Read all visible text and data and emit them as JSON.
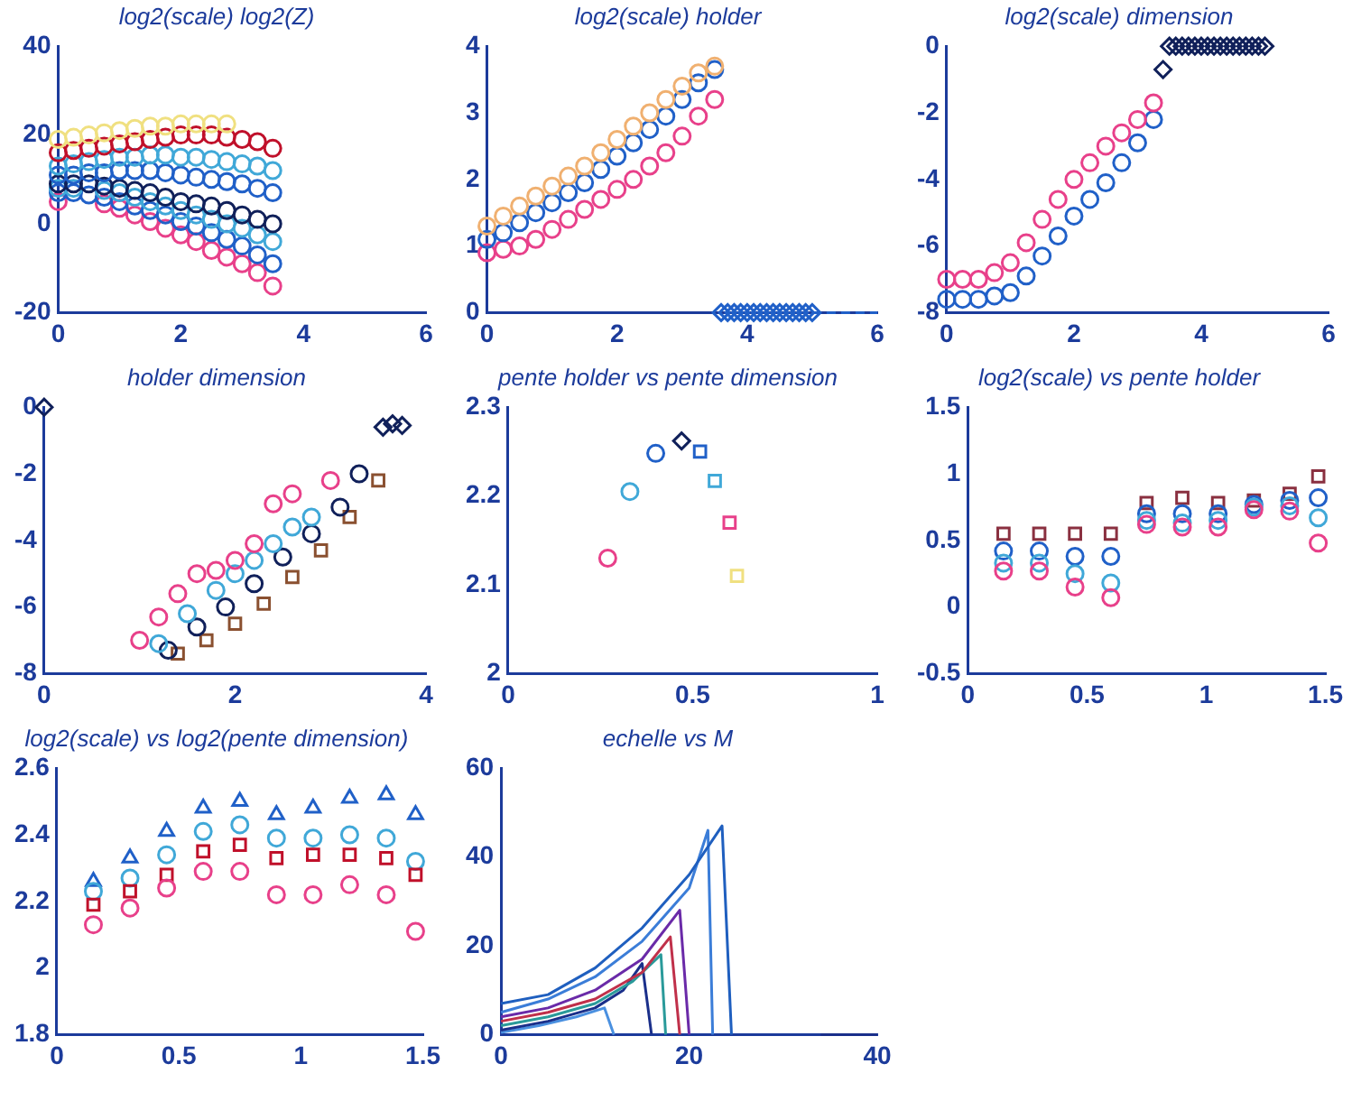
{
  "chart_data": [
    {
      "type": "scatter",
      "title": "log2(scale) log2(Z)",
      "xlim": [
        0,
        6
      ],
      "ylim": [
        -20,
        40
      ],
      "xticks": [
        0,
        2,
        4,
        6
      ],
      "yticks": [
        -20,
        0,
        20,
        40
      ],
      "marker": "circle",
      "x": [
        0,
        0.25,
        0.5,
        0.75,
        1,
        1.25,
        1.5,
        1.75,
        2,
        2.25,
        2.5,
        2.75,
        3,
        3.25,
        3.5
      ],
      "series": [
        {
          "color": "#f0e080",
          "x": [
            0,
            0.25,
            0.5,
            0.75,
            1,
            1.25,
            1.5,
            1.75,
            2,
            2.25,
            2.5,
            2.75
          ],
          "values": [
            19,
            19.5,
            20,
            20.5,
            21,
            21.5,
            22,
            22,
            22.5,
            22.5,
            22.5,
            22.5
          ]
        },
        {
          "color": "#c0102a",
          "values": [
            16,
            16.5,
            17,
            17.5,
            18,
            18.5,
            19,
            19.5,
            20,
            20,
            20,
            19.5,
            19,
            18.5,
            17
          ]
        },
        {
          "color": "#40a8d8",
          "values": [
            13,
            13.5,
            14,
            14.5,
            15,
            15,
            15.5,
            15.5,
            15,
            15,
            14.5,
            14,
            13.5,
            13,
            12
          ]
        },
        {
          "color": "#2060c8",
          "values": [
            11,
            11,
            11.5,
            11.5,
            12,
            12,
            12,
            11.5,
            11,
            10.5,
            10,
            9.5,
            9,
            8,
            7
          ]
        },
        {
          "color": "#10205a",
          "values": [
            9,
            9,
            9,
            8.5,
            8,
            7.5,
            7,
            6,
            5,
            4.5,
            4,
            3,
            2,
            1,
            0
          ]
        },
        {
          "color": "#40a8d8",
          "values": [
            8,
            8,
            null,
            7.5,
            7,
            6,
            5,
            4,
            3,
            2,
            1,
            0,
            -1,
            -2.5,
            -4
          ]
        },
        {
          "color": "#2060c8",
          "values": [
            7,
            7,
            6.5,
            6,
            5,
            4,
            3,
            2,
            0.5,
            -0.5,
            -2,
            -3.5,
            -5,
            -7,
            -9
          ]
        },
        {
          "color": "#e8408a",
          "values": [
            5,
            null,
            null,
            4.5,
            3.5,
            2,
            0.5,
            -1,
            -2.5,
            -4,
            -6,
            -7.5,
            -9,
            -11,
            -14
          ]
        }
      ]
    },
    {
      "type": "scatter",
      "title": "log2(scale) holder",
      "xlim": [
        0,
        6
      ],
      "ylim": [
        0,
        4
      ],
      "xticks": [
        0,
        2,
        4,
        6
      ],
      "yticks": [
        0,
        1,
        2,
        3,
        4
      ],
      "marker": "circle",
      "x": [
        0,
        0.25,
        0.5,
        0.75,
        1,
        1.25,
        1.5,
        1.75,
        2,
        2.25,
        2.5,
        2.75,
        3,
        3.25,
        3.5
      ],
      "series": [
        {
          "color": "#f0b070",
          "values": [
            1.3,
            1.45,
            1.6,
            1.75,
            1.9,
            2.05,
            2.2,
            2.4,
            2.6,
            2.8,
            3.0,
            3.2,
            3.4,
            3.6,
            3.7
          ]
        },
        {
          "color": "#2060c8",
          "values": [
            1.1,
            1.2,
            1.35,
            1.5,
            1.65,
            1.8,
            1.95,
            2.15,
            2.35,
            2.55,
            2.75,
            2.95,
            3.2,
            3.45,
            3.65
          ]
        },
        {
          "color": "#e8408a",
          "values": [
            0.9,
            0.95,
            1.0,
            1.1,
            1.25,
            1.4,
            1.55,
            1.7,
            1.85,
            2.0,
            2.2,
            2.4,
            2.65,
            2.95,
            3.2
          ]
        },
        {
          "color": "#2060c8",
          "marker": "diamond",
          "x": [
            3.6,
            3.7,
            3.8,
            3.9,
            4.0,
            4.1,
            4.2,
            4.3,
            4.4,
            4.5,
            4.6,
            4.7,
            4.8,
            4.9,
            5.0
          ],
          "values": [
            0,
            0,
            0,
            0,
            0,
            0,
            0,
            0,
            0,
            0,
            0,
            0,
            0,
            0,
            0
          ]
        },
        {
          "type": "line",
          "color": "#2060c8",
          "marker": "none",
          "line_style": "dashed",
          "x": [
            5,
            6
          ],
          "values": [
            0,
            0
          ]
        }
      ]
    },
    {
      "type": "scatter",
      "title": "log2(scale) dimension",
      "xlim": [
        0,
        6
      ],
      "ylim": [
        -8,
        0
      ],
      "xticks": [
        0,
        2,
        4,
        6
      ],
      "yticks": [
        -8,
        -6,
        -4,
        -2,
        0
      ],
      "marker": "circle",
      "x": [
        0,
        0.25,
        0.5,
        0.75,
        1,
        1.25,
        1.5,
        1.75,
        2,
        2.25,
        2.5,
        2.75,
        3,
        3.25
      ],
      "series": [
        {
          "color": "#e8408a",
          "values": [
            -7,
            -7,
            -7,
            -6.8,
            -6.5,
            -5.9,
            -5.2,
            -4.6,
            -4,
            -3.5,
            -3,
            -2.6,
            -2.2,
            -1.7
          ]
        },
        {
          "color": "#2060c8",
          "values": [
            -7.6,
            -7.6,
            -7.6,
            -7.5,
            -7.4,
            -6.9,
            -6.3,
            -5.7,
            -5.1,
            -4.6,
            -4.1,
            -3.5,
            -2.9,
            -2.2
          ]
        },
        {
          "color": "#10205a",
          "marker": "diamond",
          "x": [
            3.4,
            3.5,
            3.6,
            3.7,
            3.8,
            3.9,
            4.0,
            4.1,
            4.2,
            4.3,
            4.4,
            4.5,
            4.6,
            4.7,
            4.8,
            4.9,
            5.0
          ],
          "values": [
            -0.7,
            0,
            0,
            0,
            0,
            0,
            0,
            0,
            0,
            0,
            0,
            0,
            0,
            0,
            0,
            0,
            0
          ]
        }
      ]
    },
    {
      "type": "scatter",
      "title": "holder dimension",
      "xlim": [
        0,
        4
      ],
      "ylim": [
        -8,
        0
      ],
      "xticks": [
        0,
        2,
        4
      ],
      "yticks": [
        -8,
        -6,
        -4,
        -2,
        0
      ],
      "marker": "circle",
      "series": [
        {
          "color": "#e8408a",
          "x": [
            1.0,
            1.2,
            1.4,
            1.6,
            1.8,
            2.0,
            2.2,
            2.4,
            2.6,
            3.0
          ],
          "values": [
            -7,
            -6.3,
            -5.6,
            -5,
            -4.9,
            -4.6,
            -4.1,
            -2.9,
            -2.6,
            -2.2
          ]
        },
        {
          "color": "#40a8d8",
          "x": [
            1.2,
            1.5,
            1.8,
            2.0,
            2.2,
            2.4,
            2.6,
            2.8
          ],
          "values": [
            -7.1,
            -6.2,
            -5.5,
            -5,
            -4.6,
            -4.1,
            -3.6,
            -3.3
          ]
        },
        {
          "color": "#10205a",
          "x": [
            1.3,
            1.6,
            1.9,
            2.2,
            2.5,
            2.8,
            3.1,
            3.3
          ],
          "values": [
            -7.3,
            -6.6,
            -6,
            -5.3,
            -4.5,
            -3.8,
            -3,
            -2
          ]
        },
        {
          "color": "#8a5030",
          "marker": "square",
          "x": [
            1.4,
            1.7,
            2.0,
            2.3,
            2.6,
            2.9,
            3.2,
            3.5
          ],
          "values": [
            -7.4,
            -7,
            -6.5,
            -5.9,
            -5.1,
            -4.3,
            -3.3,
            -2.2
          ]
        },
        {
          "color": "#10205a",
          "marker": "diamond",
          "x": [
            0,
            3.55,
            3.65,
            3.75
          ],
          "values": [
            0,
            -0.6,
            -0.5,
            -0.55
          ]
        }
      ]
    },
    {
      "type": "scatter",
      "title": "pente holder vs pente dimension",
      "xlim": [
        0,
        1
      ],
      "ylim": [
        2,
        2.3
      ],
      "xticks": [
        0,
        0.5,
        1
      ],
      "yticks": [
        2,
        2.1,
        2.2,
        2.3
      ],
      "marker": "circle",
      "series": [
        {
          "colors": [
            "#e8408a",
            "#40a8d8",
            "#2060c8"
          ],
          "x": [
            0.27,
            0.33,
            0.4
          ],
          "values": [
            2.13,
            2.205,
            2.248
          ]
        },
        {
          "color": "#10205a",
          "marker": "diamond",
          "x": [
            0.47
          ],
          "values": [
            2.262
          ]
        },
        {
          "colors": [
            "#2060c8",
            "#40a8d8",
            "#e8408a",
            "#f0e080"
          ],
          "marker": "square",
          "x": [
            0.52,
            0.56,
            0.6,
            0.62
          ],
          "values": [
            2.25,
            2.217,
            2.17,
            2.11
          ]
        }
      ]
    },
    {
      "type": "scatter",
      "title": "log2(scale) vs pente holder",
      "xlim": [
        0,
        1.5
      ],
      "ylim": [
        -0.5,
        1.5
      ],
      "xticks": [
        0,
        0.5,
        1,
        1.5
      ],
      "yticks": [
        -0.5,
        0,
        0.5,
        1,
        1.5
      ],
      "marker": "circle",
      "x": [
        0.15,
        0.3,
        0.45,
        0.6,
        0.75,
        0.9,
        1.05,
        1.2,
        1.35,
        1.47
      ],
      "series": [
        {
          "color": "#e8408a",
          "values": [
            0.27,
            0.27,
            0.15,
            0.07,
            0.62,
            0.6,
            0.6,
            0.73,
            0.72,
            0.48
          ]
        },
        {
          "color": "#40a8d8",
          "values": [
            0.33,
            0.33,
            0.25,
            0.18,
            0.65,
            0.63,
            0.65,
            0.75,
            0.76,
            0.67
          ]
        },
        {
          "color": "#2060c8",
          "values": [
            0.42,
            0.42,
            0.38,
            0.38,
            0.7,
            0.7,
            0.7,
            0.77,
            0.8,
            0.82
          ]
        },
        {
          "color": "#8a3040",
          "marker": "square",
          "values": [
            0.55,
            0.55,
            0.55,
            0.55,
            0.78,
            0.82,
            0.78,
            0.8,
            0.85,
            0.98
          ]
        }
      ]
    },
    {
      "type": "scatter",
      "title": "log2(scale) vs log2(pente dimension)",
      "xlim": [
        0,
        1.5
      ],
      "ylim": [
        1.8,
        2.6
      ],
      "xticks": [
        0,
        0.5,
        1,
        1.5
      ],
      "yticks": [
        1.8,
        2,
        2.2,
        2.4,
        2.6
      ],
      "marker": "circle",
      "x": [
        0.15,
        0.3,
        0.45,
        0.6,
        0.75,
        0.9,
        1.05,
        1.2,
        1.35,
        1.47
      ],
      "series": [
        {
          "color": "#e8408a",
          "values": [
            2.13,
            2.18,
            2.24,
            2.29,
            2.29,
            2.22,
            2.22,
            2.25,
            2.22,
            2.11
          ]
        },
        {
          "color": "#c0102a",
          "marker": "square",
          "values": [
            2.19,
            2.23,
            2.28,
            2.35,
            2.37,
            2.33,
            2.34,
            2.34,
            2.33,
            2.28
          ]
        },
        {
          "color": "#40a8d8",
          "values": [
            2.23,
            2.27,
            2.34,
            2.41,
            2.43,
            2.39,
            2.39,
            2.4,
            2.39,
            2.32
          ]
        },
        {
          "color": "#2060c8",
          "marker": "triangle",
          "values": [
            2.26,
            2.33,
            2.41,
            2.48,
            2.5,
            2.46,
            2.48,
            2.51,
            2.52,
            2.46
          ]
        }
      ]
    },
    {
      "type": "line",
      "title": "echelle vs M",
      "xlim": [
        0,
        40
      ],
      "ylim": [
        0,
        60
      ],
      "xticks": [
        0,
        20,
        40
      ],
      "yticks": [
        0,
        20,
        40,
        60
      ],
      "marker": "none",
      "series": [
        {
          "color": "#1f5fbf",
          "x": [
            0,
            5,
            10,
            15,
            20,
            23.5,
            24.5
          ],
          "values": [
            7,
            9,
            15,
            24,
            36,
            47,
            0
          ]
        },
        {
          "color": "#3b7dd8",
          "x": [
            0,
            5,
            10,
            15,
            20,
            22,
            22.5
          ],
          "values": [
            5,
            8,
            13,
            21,
            33,
            46,
            0
          ]
        },
        {
          "color": "#6a2aa8",
          "x": [
            0,
            5,
            10,
            15,
            19,
            20
          ],
          "values": [
            4,
            6,
            10,
            17,
            28,
            0
          ]
        },
        {
          "color": "#c0304a",
          "x": [
            0,
            5,
            10,
            15,
            18,
            19
          ],
          "values": [
            3,
            5,
            8,
            14,
            22,
            0
          ]
        },
        {
          "color": "#2a9a9a",
          "x": [
            0,
            5,
            10,
            14,
            17,
            17.5
          ],
          "values": [
            2,
            4,
            7,
            12,
            18,
            0
          ]
        },
        {
          "color": "#1a2f8a",
          "x": [
            0,
            5,
            10,
            13,
            15,
            16
          ],
          "values": [
            1,
            3,
            6,
            10,
            16,
            0
          ]
        },
        {
          "color": "#4a90e0",
          "x": [
            0,
            4,
            8,
            11,
            12
          ],
          "values": [
            0.5,
            2,
            4,
            6,
            0
          ]
        },
        {
          "color": "#1a2f8a",
          "x": [
            34,
            40
          ],
          "values": [
            0,
            0
          ]
        }
      ]
    }
  ]
}
